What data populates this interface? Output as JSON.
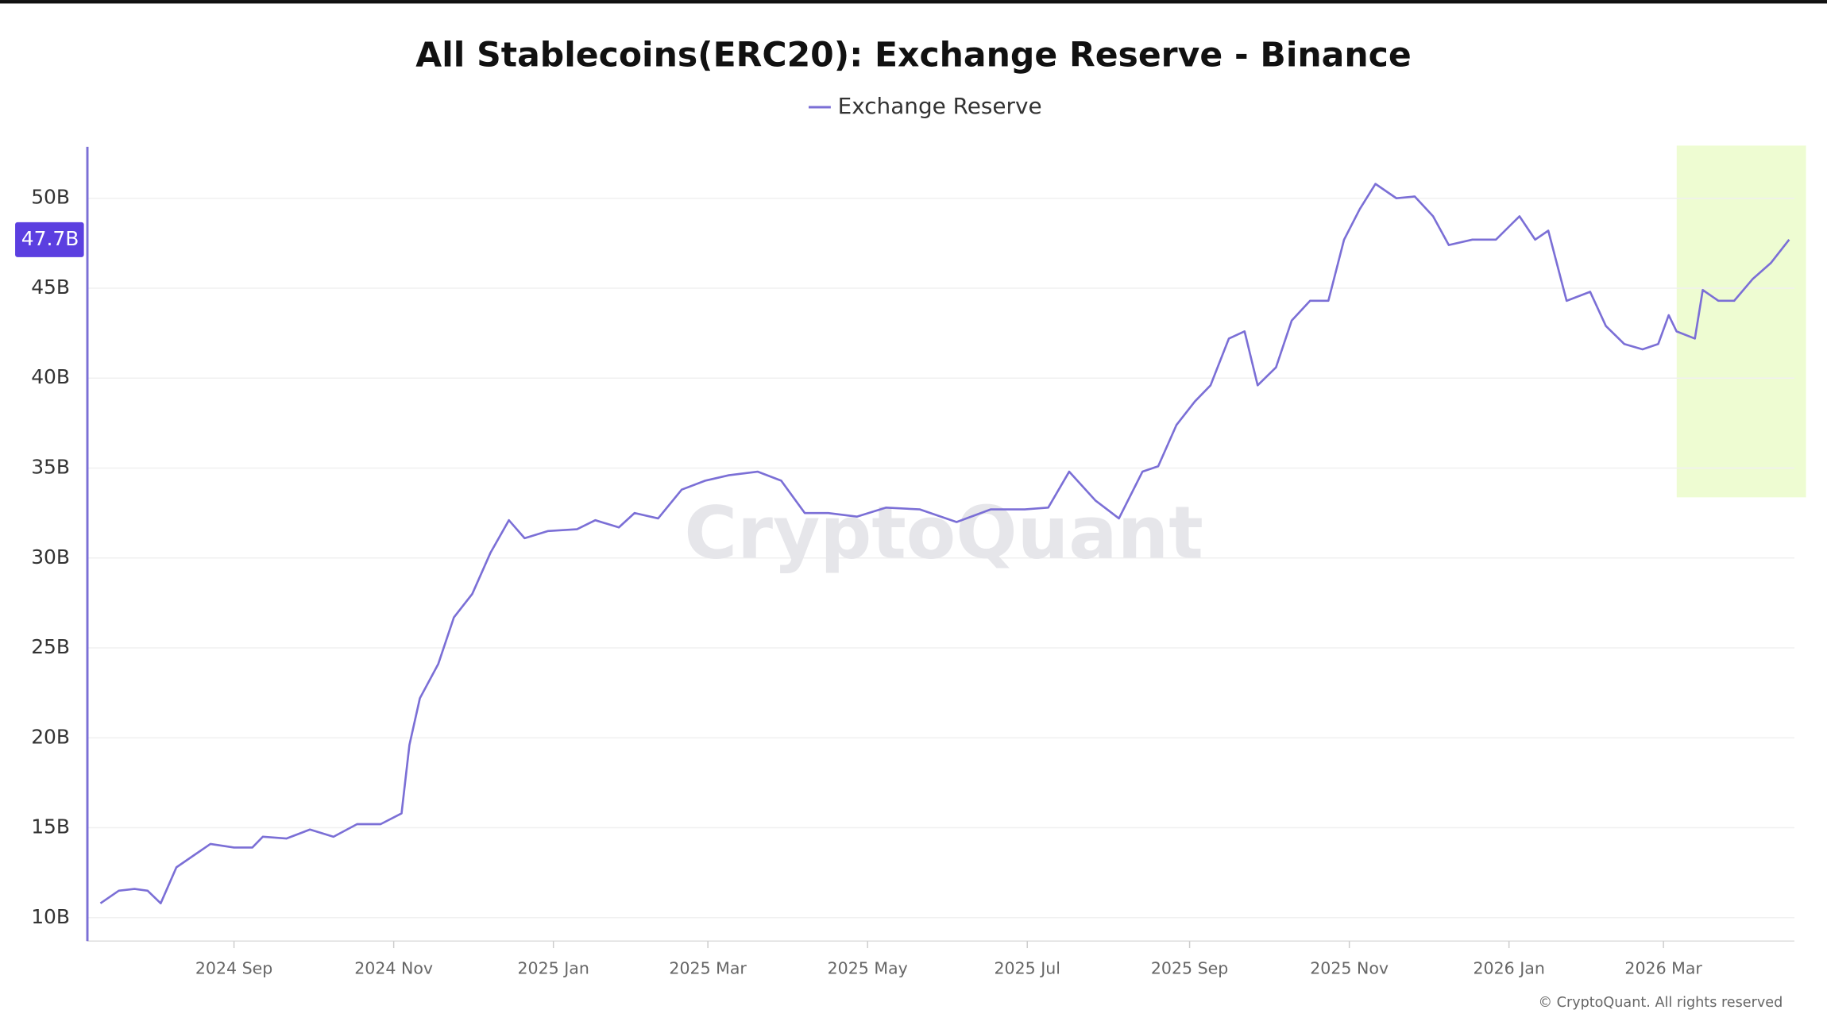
{
  "chart_data": {
    "type": "line",
    "title": "All Stablecoins(ERC20): Exchange Reserve - Binance",
    "watermark": "CryptoQuant",
    "credit": "© CryptoQuant. All rights reserved",
    "last_value_label": "47.7B",
    "grid": true,
    "x": [
      "2024-07-12",
      "2024-07-19",
      "2024-07-25",
      "2024-07-30",
      "2024-08-04",
      "2024-08-10",
      "2024-08-16",
      "2024-08-23",
      "2024-09-01",
      "2024-09-08",
      "2024-09-12",
      "2024-09-21",
      "2024-09-30",
      "2024-10-09",
      "2024-10-18",
      "2024-10-27",
      "2024-11-04",
      "2024-11-07",
      "2024-11-11",
      "2024-11-18",
      "2024-11-24",
      "2024-12-01",
      "2024-12-08",
      "2024-12-15",
      "2024-12-21",
      "2024-12-30",
      "2025-01-10",
      "2025-01-17",
      "2025-01-26",
      "2025-02-01",
      "2025-02-10",
      "2025-02-19",
      "2025-02-28",
      "2025-03-09",
      "2025-03-20",
      "2025-03-29",
      "2025-04-07",
      "2025-04-16",
      "2025-04-27",
      "2025-05-08",
      "2025-05-21",
      "2025-06-04",
      "2025-06-17",
      "2025-06-30",
      "2025-07-09",
      "2025-07-17",
      "2025-07-27",
      "2025-08-05",
      "2025-08-14",
      "2025-08-20",
      "2025-08-27",
      "2025-09-03",
      "2025-09-09",
      "2025-09-16",
      "2025-09-22",
      "2025-09-27",
      "2025-10-04",
      "2025-10-10",
      "2025-10-17",
      "2025-10-24",
      "2025-10-30",
      "2025-11-05",
      "2025-11-11",
      "2025-11-19",
      "2025-11-26",
      "2025-12-03",
      "2025-12-09",
      "2025-12-18",
      "2025-12-27",
      "2026-01-05",
      "2026-01-11",
      "2026-01-16",
      "2026-01-23",
      "2026-02-01",
      "2026-02-07",
      "2026-02-14",
      "2026-02-21",
      "2026-02-27",
      "2026-03-03",
      "2026-03-06",
      "2026-03-13",
      "2026-03-16",
      "2026-03-22",
      "2026-03-28",
      "2026-04-04",
      "2026-04-11",
      "2026-04-18"
    ],
    "series": [
      {
        "name": "Exchange Reserve",
        "color": "#7b6fd6",
        "values": [
          10.8,
          11.5,
          11.6,
          11.5,
          10.8,
          12.8,
          13.4,
          14.1,
          13.9,
          13.9,
          14.5,
          14.4,
          14.9,
          14.5,
          15.2,
          15.2,
          15.8,
          19.6,
          22.2,
          24.1,
          26.7,
          28.0,
          30.3,
          32.1,
          31.1,
          31.5,
          31.6,
          32.1,
          31.7,
          32.5,
          32.2,
          33.8,
          34.3,
          34.6,
          34.8,
          34.3,
          32.5,
          32.5,
          32.3,
          32.8,
          32.7,
          32.0,
          32.7,
          32.7,
          32.8,
          34.8,
          33.2,
          32.2,
          34.8,
          35.1,
          37.4,
          38.7,
          39.6,
          42.2,
          42.6,
          39.6,
          40.6,
          43.2,
          44.3,
          44.3,
          47.7,
          49.4,
          50.8,
          50.0,
          50.1,
          49.0,
          47.4,
          47.7,
          47.7,
          49.0,
          47.7,
          48.2,
          44.3,
          44.8,
          42.9,
          41.9,
          41.6,
          41.9,
          43.5,
          42.6,
          42.2,
          44.9,
          44.3,
          44.3,
          45.5,
          46.4,
          47.7
        ]
      }
    ],
    "xlim": [
      "2024-07-07",
      "2026-04-20"
    ],
    "xticks": [
      {
        "value": "2024-09-01",
        "label": "2024 Sep"
      },
      {
        "value": "2024-11-01",
        "label": "2024 Nov"
      },
      {
        "value": "2025-01-01",
        "label": "2025 Jan"
      },
      {
        "value": "2025-03-01",
        "label": "2025 Mar"
      },
      {
        "value": "2025-05-01",
        "label": "2025 May"
      },
      {
        "value": "2025-07-01",
        "label": "2025 Jul"
      },
      {
        "value": "2025-09-01",
        "label": "2025 Sep"
      },
      {
        "value": "2025-11-01",
        "label": "2025 Nov"
      },
      {
        "value": "2026-01-01",
        "label": "2026 Jan"
      },
      {
        "value": "2026-03-01",
        "label": "2026 Mar"
      }
    ],
    "ylim": [
      8.7,
      52.8
    ],
    "yticks": [
      {
        "value": 10,
        "label": "10B"
      },
      {
        "value": 15,
        "label": "15B"
      },
      {
        "value": 20,
        "label": "20B"
      },
      {
        "value": 25,
        "label": "25B"
      },
      {
        "value": 30,
        "label": "30B"
      },
      {
        "value": 35,
        "label": "35B"
      },
      {
        "value": 40,
        "label": "40B"
      },
      {
        "value": 45,
        "label": "45B"
      },
      {
        "value": 50,
        "label": "50B"
      }
    ]
  }
}
